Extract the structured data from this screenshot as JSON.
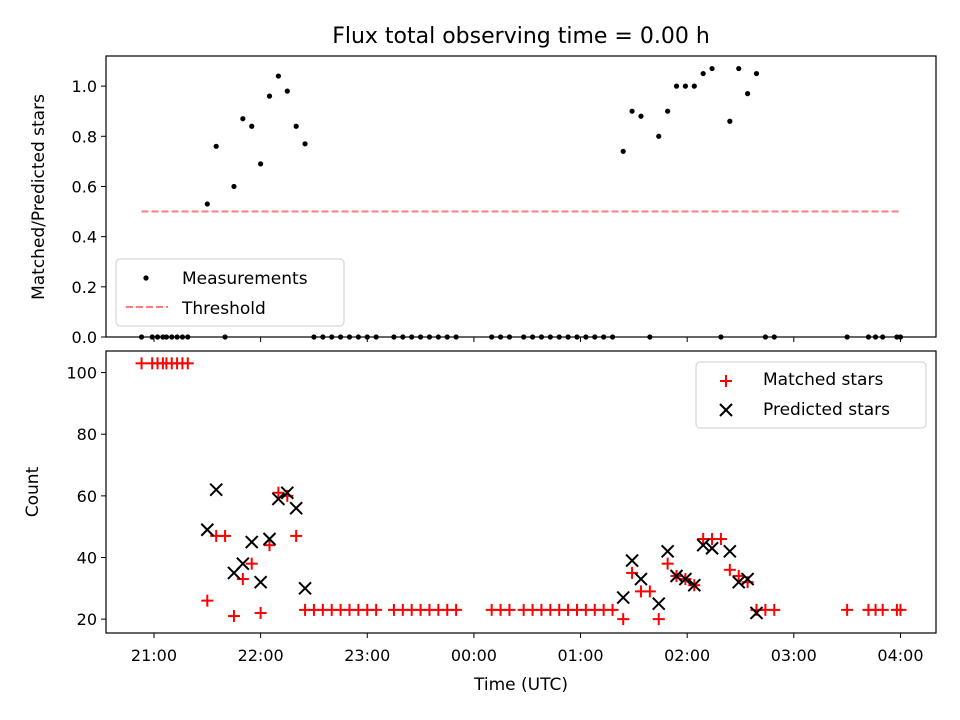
{
  "chart_data": [
    {
      "type": "scatter",
      "title": "Flux total observing time = 0.00 h",
      "xlabel": "",
      "ylabel": "Matched/Predicted stars",
      "xlim": [
        "20:33",
        "04:20"
      ],
      "ylim": [
        0,
        1.12
      ],
      "yticks": [
        "0.0",
        "0.2",
        "0.4",
        "0.6",
        "0.8",
        "1.0"
      ],
      "grid": false,
      "legend": "lower-left",
      "series": [
        {
          "name": "Measurements",
          "marker": "dot",
          "color": "#000000",
          "points": [
            [
              "20:53",
              0
            ],
            [
              "20:59",
              0
            ],
            [
              "21:02",
              0
            ],
            [
              "21:05",
              0
            ],
            [
              "21:07",
              0
            ],
            [
              "21:10",
              0
            ],
            [
              "21:13",
              0
            ],
            [
              "21:16",
              0
            ],
            [
              "21:19",
              0
            ],
            [
              "21:30",
              0.53
            ],
            [
              "21:35",
              0.76
            ],
            [
              "21:40",
              0
            ],
            [
              "21:45",
              0.6
            ],
            [
              "21:50",
              0.87
            ],
            [
              "21:55",
              0.84
            ],
            [
              "22:00",
              0.69
            ],
            [
              "22:05",
              0.96
            ],
            [
              "22:10",
              1.04
            ],
            [
              "22:15",
              0.98
            ],
            [
              "22:20",
              0.84
            ],
            [
              "22:25",
              0.77
            ],
            [
              "22:30",
              0
            ],
            [
              "22:35",
              0
            ],
            [
              "22:40",
              0
            ],
            [
              "22:45",
              0
            ],
            [
              "22:50",
              0
            ],
            [
              "22:55",
              0
            ],
            [
              "23:00",
              0
            ],
            [
              "23:05",
              0
            ],
            [
              "23:15",
              0
            ],
            [
              "23:20",
              0
            ],
            [
              "23:25",
              0
            ],
            [
              "23:30",
              0
            ],
            [
              "23:35",
              0
            ],
            [
              "23:40",
              0
            ],
            [
              "23:45",
              0
            ],
            [
              "23:50",
              0
            ],
            [
              "00:10",
              0
            ],
            [
              "00:15",
              0
            ],
            [
              "00:20",
              0
            ],
            [
              "00:28",
              0
            ],
            [
              "00:33",
              0
            ],
            [
              "00:38",
              0
            ],
            [
              "00:43",
              0
            ],
            [
              "00:48",
              0
            ],
            [
              "00:53",
              0
            ],
            [
              "00:58",
              0
            ],
            [
              "01:03",
              0
            ],
            [
              "01:08",
              0
            ],
            [
              "01:13",
              0
            ],
            [
              "01:18",
              0
            ],
            [
              "01:24",
              0.74
            ],
            [
              "01:29",
              0.9
            ],
            [
              "01:34",
              0.88
            ],
            [
              "01:39",
              0
            ],
            [
              "01:44",
              0.8
            ],
            [
              "01:49",
              0.9
            ],
            [
              "01:54",
              1.0
            ],
            [
              "01:59",
              1.0
            ],
            [
              "02:04",
              1.0
            ],
            [
              "02:09",
              1.05
            ],
            [
              "02:14",
              1.07
            ],
            [
              "02:19",
              0
            ],
            [
              "02:24",
              0.86
            ],
            [
              "02:29",
              1.07
            ],
            [
              "02:34",
              0.97
            ],
            [
              "02:39",
              1.05
            ],
            [
              "02:44",
              0
            ],
            [
              "02:49",
              0
            ],
            [
              "03:30",
              0
            ],
            [
              "03:42",
              0
            ],
            [
              "03:46",
              0
            ],
            [
              "03:50",
              0
            ],
            [
              "03:58",
              0
            ],
            [
              "04:00",
              0
            ]
          ]
        },
        {
          "name": "Threshold",
          "style": "dashed",
          "color": "#ff7b7b",
          "points": [
            [
              "20:53",
              0.5
            ],
            [
              "04:00",
              0.5
            ]
          ]
        }
      ]
    },
    {
      "type": "scatter",
      "title": "",
      "xlabel": "Time (UTC)",
      "ylabel": "Count",
      "xlim": [
        "20:33",
        "04:20"
      ],
      "ylim": [
        15.5,
        107
      ],
      "yticks": [
        "20",
        "40",
        "60",
        "80",
        "100"
      ],
      "xticks": [
        "21:00",
        "22:00",
        "23:00",
        "00:00",
        "01:00",
        "02:00",
        "03:00",
        "04:00"
      ],
      "grid": false,
      "legend": "upper-right",
      "series": [
        {
          "name": "Matched stars",
          "marker": "plus",
          "color": "#ff0000",
          "points": [
            [
              "20:53",
              103
            ],
            [
              "20:59",
              103
            ],
            [
              "21:02",
              103
            ],
            [
              "21:05",
              103
            ],
            [
              "21:07",
              103
            ],
            [
              "21:10",
              103
            ],
            [
              "21:13",
              103
            ],
            [
              "21:16",
              103
            ],
            [
              "21:19",
              103
            ],
            [
              "21:30",
              26
            ],
            [
              "21:35",
              47
            ],
            [
              "21:40",
              47
            ],
            [
              "21:45",
              21
            ],
            [
              "21:50",
              33
            ],
            [
              "21:55",
              38
            ],
            [
              "22:00",
              22
            ],
            [
              "22:05",
              44
            ],
            [
              "22:10",
              61
            ],
            [
              "22:15",
              60
            ],
            [
              "22:20",
              47
            ],
            [
              "22:25",
              23
            ],
            [
              "22:30",
              23
            ],
            [
              "22:35",
              23
            ],
            [
              "22:40",
              23
            ],
            [
              "22:45",
              23
            ],
            [
              "22:50",
              23
            ],
            [
              "22:55",
              23
            ],
            [
              "23:00",
              23
            ],
            [
              "23:05",
              23
            ],
            [
              "23:15",
              23
            ],
            [
              "23:20",
              23
            ],
            [
              "23:25",
              23
            ],
            [
              "23:30",
              23
            ],
            [
              "23:35",
              23
            ],
            [
              "23:40",
              23
            ],
            [
              "23:45",
              23
            ],
            [
              "23:50",
              23
            ],
            [
              "00:10",
              23
            ],
            [
              "00:15",
              23
            ],
            [
              "00:20",
              23
            ],
            [
              "00:28",
              23
            ],
            [
              "00:33",
              23
            ],
            [
              "00:38",
              23
            ],
            [
              "00:43",
              23
            ],
            [
              "00:48",
              23
            ],
            [
              "00:53",
              23
            ],
            [
              "00:58",
              23
            ],
            [
              "01:03",
              23
            ],
            [
              "01:08",
              23
            ],
            [
              "01:13",
              23
            ],
            [
              "01:18",
              23
            ],
            [
              "01:24",
              20
            ],
            [
              "01:29",
              35
            ],
            [
              "01:34",
              29
            ],
            [
              "01:39",
              29
            ],
            [
              "01:44",
              20
            ],
            [
              "01:49",
              38
            ],
            [
              "01:54",
              34
            ],
            [
              "01:59",
              33
            ],
            [
              "02:04",
              31
            ],
            [
              "02:09",
              46
            ],
            [
              "02:14",
              46
            ],
            [
              "02:19",
              46
            ],
            [
              "02:24",
              36
            ],
            [
              "02:29",
              34
            ],
            [
              "02:34",
              32
            ],
            [
              "02:39",
              23
            ],
            [
              "02:44",
              23
            ],
            [
              "02:49",
              23
            ],
            [
              "03:30",
              23
            ],
            [
              "03:42",
              23
            ],
            [
              "03:46",
              23
            ],
            [
              "03:50",
              23
            ],
            [
              "03:58",
              23
            ],
            [
              "04:00",
              23
            ]
          ]
        },
        {
          "name": "Predicted stars",
          "marker": "x",
          "color": "#000000",
          "points": [
            [
              "21:30",
              49
            ],
            [
              "21:35",
              62
            ],
            [
              "21:45",
              35
            ],
            [
              "21:50",
              38
            ],
            [
              "21:55",
              45
            ],
            [
              "22:00",
              32
            ],
            [
              "22:05",
              46
            ],
            [
              "22:10",
              59
            ],
            [
              "22:15",
              61
            ],
            [
              "22:20",
              56
            ],
            [
              "22:25",
              30
            ],
            [
              "01:24",
              27
            ],
            [
              "01:29",
              39
            ],
            [
              "01:34",
              33
            ],
            [
              "01:44",
              25
            ],
            [
              "01:49",
              42
            ],
            [
              "01:54",
              34
            ],
            [
              "01:59",
              33
            ],
            [
              "02:04",
              31
            ],
            [
              "02:09",
              44
            ],
            [
              "02:14",
              43
            ],
            [
              "02:24",
              42
            ],
            [
              "02:29",
              32
            ],
            [
              "02:34",
              33
            ],
            [
              "02:39",
              22
            ]
          ]
        }
      ]
    }
  ]
}
